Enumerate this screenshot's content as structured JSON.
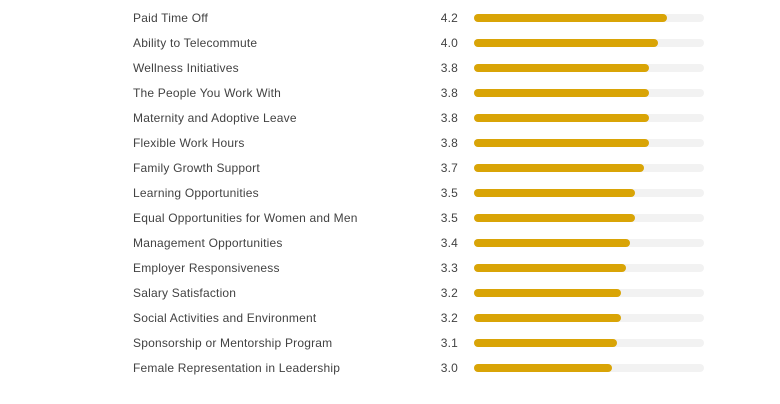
{
  "chart_data": {
    "type": "bar",
    "orientation": "horizontal",
    "title": "",
    "xlabel": "",
    "ylabel": "",
    "xlim": [
      0,
      5
    ],
    "grid": false,
    "legend": false,
    "value_labels_shown": true,
    "value_label_decimals": 1,
    "categories": [
      "Paid Time Off",
      "Ability to Telecommute",
      "Wellness Initiatives",
      "The People You Work With",
      "Maternity and Adoptive Leave",
      "Flexible Work Hours",
      "Family Growth Support",
      "Learning Opportunities",
      "Equal Opportunities for Women and Men",
      "Management Opportunities",
      "Employer Responsiveness",
      "Salary Satisfaction",
      "Social Activities and Environment",
      "Sponsorship or Mentorship Program",
      "Female Representation in Leadership"
    ],
    "values": [
      4.2,
      4.0,
      3.8,
      3.8,
      3.8,
      3.8,
      3.7,
      3.5,
      3.5,
      3.4,
      3.3,
      3.2,
      3.2,
      3.1,
      3.0
    ],
    "colors": {
      "bar": "#d9a406",
      "track": "#f2f2f2",
      "text": "#424242",
      "background": "#ffffff"
    }
  }
}
